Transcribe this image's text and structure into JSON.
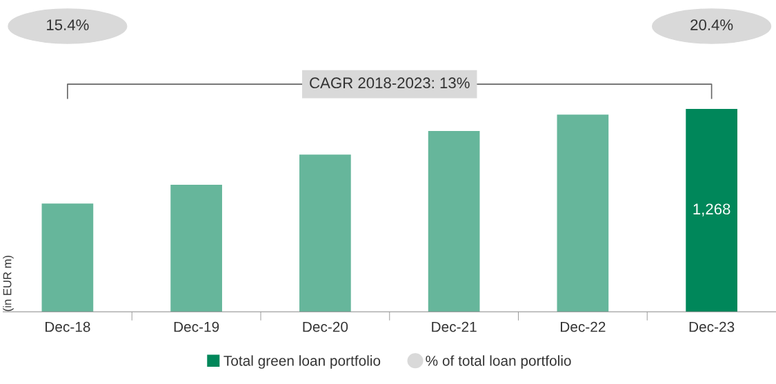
{
  "chart_data": {
    "type": "bar",
    "ylabel": "(in EUR m)",
    "categories": [
      "Dec-18",
      "Dec-19",
      "Dec-20",
      "Dec-21",
      "Dec-22",
      "Dec-23"
    ],
    "series": [
      {
        "name": "Total green loan portfolio",
        "color": "#00875a",
        "values": [
          677,
          794,
          983,
          1130,
          1233,
          1268
        ],
        "colors": [
          "#66b69b",
          "#66b69b",
          "#66b69b",
          "#66b69b",
          "#66b69b",
          "#00875a"
        ],
        "value_labels": [
          null,
          null,
          null,
          null,
          null,
          "1,268"
        ]
      }
    ],
    "annotations": [
      "15.4%",
      "20.4%",
      "CAGR 2018-2023: 13%",
      "% of total loan portfolio"
    ],
    "legend": "bottom",
    "grid": false
  }
}
